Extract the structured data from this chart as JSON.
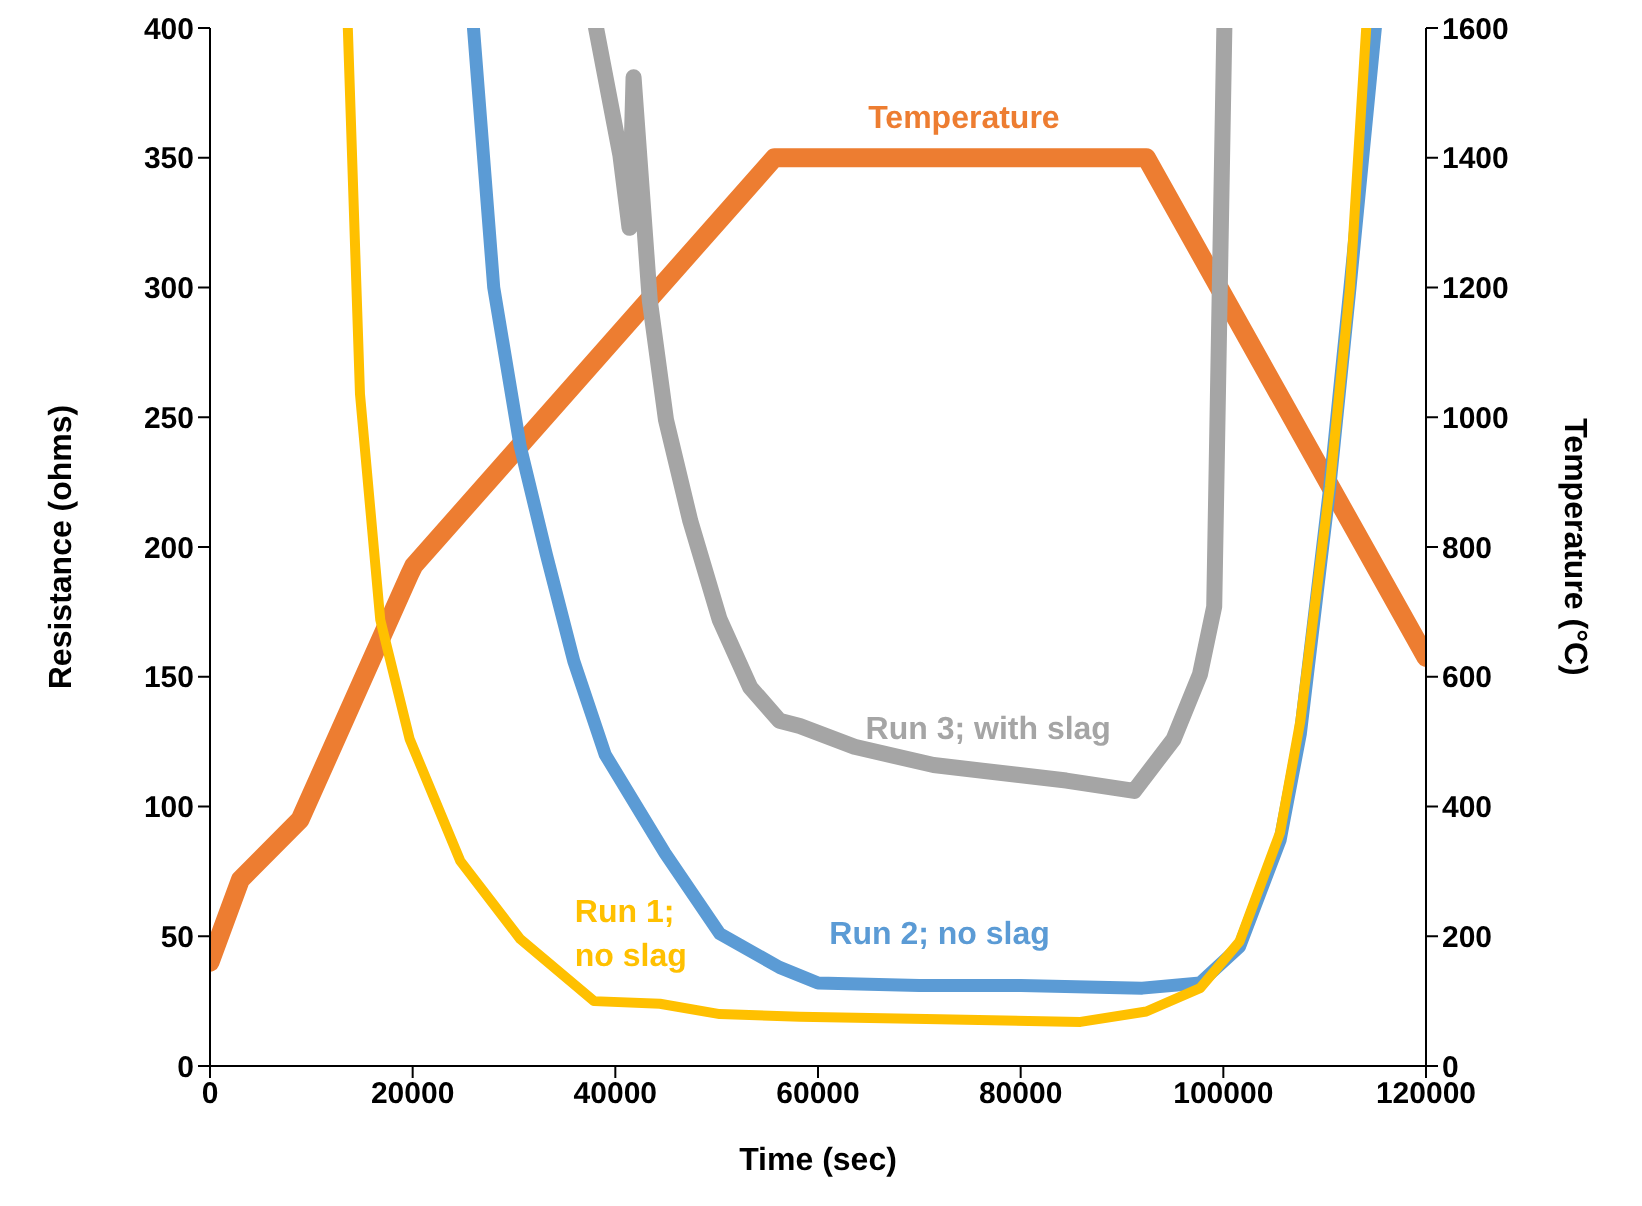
{
  "chart_data": {
    "type": "line",
    "xlabel": "Time (sec)",
    "ylabel": "Resistance (ohms)",
    "y2label": "Temperature (°C)",
    "xlim": [
      0,
      120000
    ],
    "xticks": [
      0,
      20000,
      40000,
      60000,
      80000,
      100000,
      120000
    ],
    "ylim": [
      0,
      400
    ],
    "yticks": [
      0,
      50,
      100,
      150,
      200,
      250,
      300,
      350,
      400
    ],
    "y2lim": [
      0,
      1600
    ],
    "y2ticks": [
      0,
      200,
      400,
      600,
      800,
      1000,
      1200,
      1400,
      1600
    ],
    "series": [
      {
        "name": "Run 1; no slag",
        "color": "#ffc000",
        "x": [
          13600,
          14800,
          16800,
          19700,
          24700,
          30600,
          37900,
          44400,
          50300,
          58200,
          72000,
          85900,
          92400,
          97700,
          101600,
          105600,
          107600,
          110500,
          112500,
          114100
        ],
        "values": [
          400,
          259,
          172,
          126,
          79,
          49,
          25,
          24,
          20,
          19,
          18,
          17,
          21,
          30,
          48,
          90,
          133,
          223,
          300,
          400
        ]
      },
      {
        "name": "Run 2; no slag",
        "color": "#5b9bd5",
        "x": [
          26000,
          28000,
          30600,
          33200,
          35900,
          39000,
          44900,
          50300,
          56200,
          60000,
          70000,
          80000,
          92000,
          97700,
          101600,
          105600,
          107600,
          110500,
          112500,
          115000
        ],
        "values": [
          400,
          300,
          239,
          197,
          156,
          120,
          82,
          51,
          38,
          32,
          31,
          31,
          30,
          32,
          46,
          87,
          128,
          223,
          300,
          400
        ]
      },
      {
        "name": "Run 3; with slag",
        "color": "#a5a5a5",
        "x": [
          38100,
          40500,
          41400,
          41800,
          43400,
          45000,
          47400,
          50300,
          53300,
          56200,
          58200,
          63600,
          71400,
          84500,
          91200,
          95100,
          97700,
          99100,
          100100
        ],
        "values": [
          400,
          351,
          323,
          381,
          295,
          249,
          210,
          172,
          146,
          133,
          131,
          123,
          116,
          110,
          106,
          126,
          151,
          177,
          400
        ]
      },
      {
        "name": "Temperature",
        "color": "#ed7d31",
        "axis": "y2",
        "x": [
          0,
          3000,
          8900,
          19700,
          20100,
          55700,
          92400,
          120000
        ],
        "values": [
          160,
          287,
          380,
          758,
          771,
          1400,
          1400,
          630
        ]
      }
    ]
  }
}
